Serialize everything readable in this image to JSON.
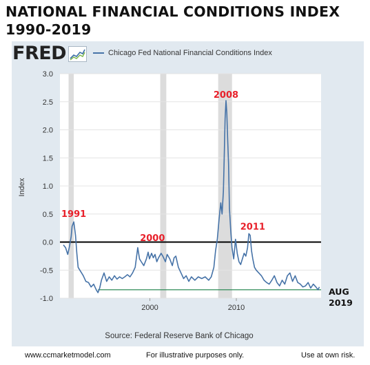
{
  "title_line1": "NATIONAL FINANCIAL CONDITIONS INDEX",
  "title_line2": "1990-2019",
  "logo_text": "FRED",
  "footer": {
    "website": "www.ccmarketmodel.com",
    "disclaimer1": "For illustrative purposes only.",
    "disclaimer2": "Use at own risk."
  },
  "colors": {
    "series": "#4572a7",
    "zero_line": "#000000",
    "support_line": "#2e8b57",
    "annotation": "#e8202a",
    "panel": "#e1e9f0",
    "recession": "#dcdcdc"
  },
  "chart_data": {
    "type": "line",
    "series": [
      {
        "name": "Chicago Fed National Financial Conditions Index",
        "x": [
          1990.0,
          1990.25,
          1990.5,
          1990.7,
          1990.9,
          1991.0,
          1991.2,
          1991.4,
          1991.55,
          1991.7,
          1991.9,
          1992.1,
          1992.3,
          1992.6,
          1992.9,
          1993.2,
          1993.5,
          1993.8,
          1994.0,
          1994.2,
          1994.4,
          1994.7,
          1995.0,
          1995.3,
          1995.6,
          1995.9,
          1996.2,
          1996.5,
          1996.8,
          1997.1,
          1997.4,
          1997.7,
          1998.0,
          1998.3,
          1998.6,
          1998.8,
          1999.0,
          1999.3,
          1999.6,
          1999.8,
          1999.95,
          2000.2,
          2000.4,
          2000.6,
          2000.8,
          2001.0,
          2001.3,
          2001.5,
          2001.8,
          2002.0,
          2002.3,
          2002.6,
          2002.8,
          2003.0,
          2003.3,
          2003.6,
          2003.9,
          2004.2,
          2004.5,
          2004.8,
          2005.2,
          2005.6,
          2006.0,
          2006.4,
          2006.8,
          2007.1,
          2007.4,
          2007.6,
          2007.8,
          2008.0,
          2008.2,
          2008.35,
          2008.5,
          2008.6,
          2008.7,
          2008.8,
          2008.9,
          2009.0,
          2009.1,
          2009.2,
          2009.35,
          2009.5,
          2009.7,
          2009.9,
          2010.1,
          2010.3,
          2010.5,
          2010.7,
          2010.9,
          2011.1,
          2011.3,
          2011.45,
          2011.6,
          2011.75,
          2011.9,
          2012.1,
          2012.3,
          2012.6,
          2012.9,
          2013.2,
          2013.5,
          2013.8,
          2014.1,
          2014.4,
          2014.7,
          2015.0,
          2015.3,
          2015.6,
          2015.9,
          2016.2,
          2016.5,
          2016.8,
          2017.1,
          2017.4,
          2017.7,
          2018.0,
          2018.3,
          2018.6,
          2018.9,
          2019.2,
          2019.45,
          2019.6
        ],
        "values": [
          -0.05,
          -0.1,
          -0.22,
          -0.08,
          0.1,
          0.28,
          0.36,
          0.12,
          -0.2,
          -0.45,
          -0.5,
          -0.55,
          -0.6,
          -0.7,
          -0.72,
          -0.8,
          -0.75,
          -0.85,
          -0.9,
          -0.82,
          -0.68,
          -0.55,
          -0.7,
          -0.62,
          -0.68,
          -0.6,
          -0.66,
          -0.62,
          -0.65,
          -0.62,
          -0.58,
          -0.62,
          -0.55,
          -0.45,
          -0.1,
          -0.3,
          -0.35,
          -0.42,
          -0.3,
          -0.18,
          -0.3,
          -0.2,
          -0.28,
          -0.22,
          -0.35,
          -0.28,
          -0.2,
          -0.25,
          -0.35,
          -0.22,
          -0.3,
          -0.42,
          -0.28,
          -0.25,
          -0.45,
          -0.55,
          -0.65,
          -0.6,
          -0.7,
          -0.62,
          -0.68,
          -0.62,
          -0.65,
          -0.62,
          -0.68,
          -0.62,
          -0.45,
          -0.15,
          0.05,
          0.4,
          0.7,
          0.5,
          0.9,
          1.5,
          2.2,
          2.52,
          2.3,
          1.8,
          1.4,
          0.6,
          0.2,
          -0.1,
          -0.3,
          0.05,
          -0.2,
          -0.35,
          -0.4,
          -0.3,
          -0.2,
          -0.25,
          -0.1,
          0.15,
          0.12,
          -0.15,
          -0.3,
          -0.45,
          -0.5,
          -0.55,
          -0.6,
          -0.68,
          -0.72,
          -0.75,
          -0.68,
          -0.6,
          -0.72,
          -0.78,
          -0.68,
          -0.75,
          -0.6,
          -0.55,
          -0.7,
          -0.6,
          -0.72,
          -0.75,
          -0.8,
          -0.78,
          -0.72,
          -0.82,
          -0.75,
          -0.8,
          -0.85,
          -0.8
        ]
      }
    ],
    "x_ticks": [
      2000,
      2010
    ],
    "ylim": [
      -1.0,
      3.0
    ],
    "yticks": [
      "3.0",
      "2.5",
      "2.0",
      "1.5",
      "1.0",
      "0.5",
      "0.0",
      "-0.5",
      "-1.0"
    ],
    "xlim": [
      1989.6,
      2019.8
    ],
    "ylabel": "Index",
    "source": "Source: Federal Reserve Bank of Chicago",
    "recessions": [
      [
        1990.6,
        1991.2
      ],
      [
        2001.2,
        2001.9
      ],
      [
        2007.9,
        2009.5
      ]
    ],
    "reference_lines": [
      {
        "value": 0.0,
        "kind": "zero"
      },
      {
        "value": -0.85,
        "kind": "support",
        "from": 1994.0
      }
    ],
    "annotations": [
      {
        "text": "1991",
        "x": 1991.2,
        "y": 0.45
      },
      {
        "text": "2000",
        "x": 2000.3,
        "y": 0.02
      },
      {
        "text": "2008",
        "x": 2008.8,
        "y": 2.57
      },
      {
        "text": "2011",
        "x": 2011.9,
        "y": 0.22
      }
    ],
    "end_label_line1": "AUG",
    "end_label_line2": "2019"
  }
}
